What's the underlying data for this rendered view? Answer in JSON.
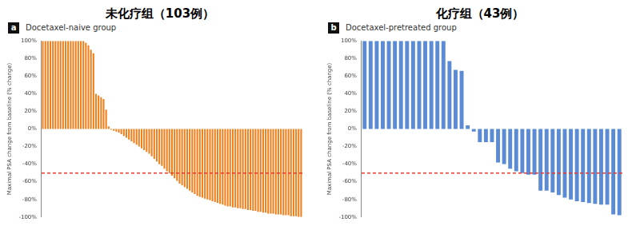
{
  "chart_data": [
    {
      "type": "bar",
      "panel": "a",
      "title": "未化疗组（103例）",
      "subtitle": "Docetaxel-naive group",
      "y_label": "Maximal PSA change from baseline (% change)",
      "color": "#f07f1c",
      "grid": false,
      "tick_labels": "y",
      "ylim": [
        -100,
        100
      ],
      "yticks": [
        {
          "value": -100,
          "label": "-100%"
        },
        {
          "value": -80,
          "label": "-80%"
        },
        {
          "value": -60,
          "label": "-60%"
        },
        {
          "value": -40,
          "label": "-40%"
        },
        {
          "value": -20,
          "label": "-20%"
        },
        {
          "value": 0,
          "label": "0%"
        },
        {
          "value": 20,
          "label": "20%"
        },
        {
          "value": 40,
          "label": "40%"
        },
        {
          "value": 60,
          "label": "60%"
        },
        {
          "value": 80,
          "label": "80%"
        },
        {
          "value": 100,
          "label": "100%"
        }
      ],
      "reference_line": {
        "value": -50,
        "color": "#e8382d",
        "line_style": "dashed"
      },
      "values": [
        100,
        100,
        100,
        100,
        100,
        100,
        100,
        100,
        100,
        100,
        100,
        100,
        100,
        100,
        100,
        100,
        100,
        98,
        95,
        90,
        86,
        40,
        38,
        36,
        34,
        22,
        3,
        -1,
        -2,
        -3,
        -4,
        -6,
        -8,
        -10,
        -12,
        -14,
        -16,
        -18,
        -20,
        -22,
        -24,
        -26,
        -28,
        -31,
        -34,
        -37,
        -40,
        -42,
        -45,
        -48,
        -50,
        -53,
        -56,
        -59,
        -62,
        -64,
        -66,
        -68,
        -70,
        -72,
        -74,
        -76,
        -77,
        -78,
        -79,
        -80,
        -81,
        -82,
        -83,
        -84,
        -85,
        -86,
        -87,
        -88,
        -88,
        -89,
        -89,
        -90,
        -90,
        -91,
        -91,
        -92,
        -92,
        -93,
        -93,
        -94,
        -94,
        -95,
        -95,
        -96,
        -96,
        -96,
        -97,
        -97,
        -97,
        -98,
        -98,
        -98,
        -99,
        -99,
        -99,
        -100,
        -100
      ]
    },
    {
      "type": "bar",
      "panel": "b",
      "title": "化疗组（43例）",
      "subtitle": "Docetaxel-pretreated group",
      "y_label": "Maximal PSA change from baseline (% change)",
      "color": "#5b8bd5",
      "grid": false,
      "tick_labels": "y",
      "ylim": [
        -100,
        100
      ],
      "yticks": [
        {
          "value": -100,
          "label": "-100%"
        },
        {
          "value": -80,
          "label": "-80%"
        },
        {
          "value": -60,
          "label": "-60%"
        },
        {
          "value": -40,
          "label": "-40%"
        },
        {
          "value": -20,
          "label": "-20%"
        },
        {
          "value": 0,
          "label": "0%"
        },
        {
          "value": 20,
          "label": "20%"
        },
        {
          "value": 40,
          "label": "40%"
        },
        {
          "value": 60,
          "label": "60%"
        },
        {
          "value": 80,
          "label": "80%"
        },
        {
          "value": 100,
          "label": "100%"
        }
      ],
      "reference_line": {
        "value": -50,
        "color": "#e8382d",
        "line_style": "dashed"
      },
      "values": [
        100,
        100,
        100,
        100,
        100,
        100,
        100,
        100,
        100,
        100,
        100,
        100,
        100,
        100,
        77,
        67,
        66,
        4,
        -3,
        -15,
        -15,
        -15,
        -38,
        -40,
        -45,
        -48,
        -50,
        -52,
        -52,
        -70,
        -70,
        -72,
        -75,
        -78,
        -80,
        -82,
        -83,
        -84,
        -85,
        -86,
        -86,
        -97,
        -98
      ]
    }
  ]
}
